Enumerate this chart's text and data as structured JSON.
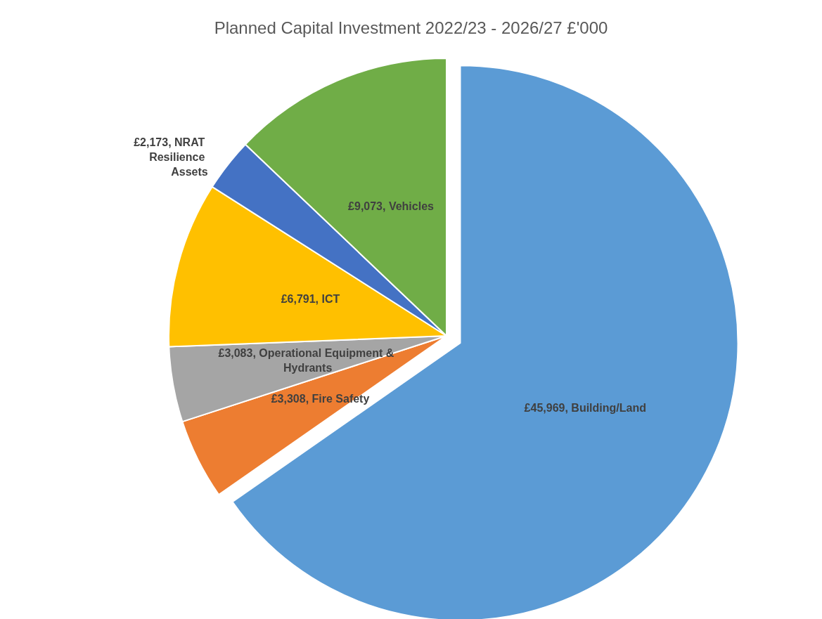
{
  "chart_data": {
    "type": "pie",
    "title": "Planned Capital Investment 2022/23 - 2026/27 £'000",
    "categories": [
      "Building/Land",
      "Fire Safety",
      "Operational Equipment & Hydrants",
      "ICT",
      "NRAT Resilience Assets",
      "Vehicles"
    ],
    "values": [
      45969,
      3308,
      3083,
      6791,
      2173,
      9073
    ],
    "value_labels": [
      "£45,969",
      "£3,308",
      "£3,083",
      "£6,791",
      "£2,173",
      "£9,073"
    ],
    "colors": [
      "#5b9bd5",
      "#ed7d31",
      "#a5a5a5",
      "#ffc000",
      "#4472c4",
      "#70ad47"
    ],
    "legend": false
  }
}
